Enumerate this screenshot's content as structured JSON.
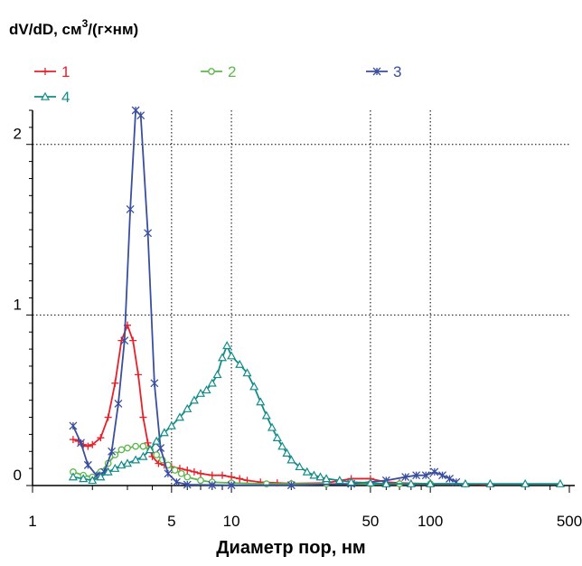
{
  "chart_data": {
    "type": "line",
    "ylabel_prefix": "dV/dD,  см",
    "ylabel_sup": "3",
    "ylabel_suffix": "/(г×нм)",
    "xlabel": "Диаметр пор, нм",
    "x_scale": "log",
    "xlim": [
      1,
      500
    ],
    "ylim": [
      0,
      2.2
    ],
    "x_ticks": [
      {
        "value": 1,
        "label": "1"
      },
      {
        "value": 5,
        "label": "5"
      },
      {
        "value": 10,
        "label": "10"
      },
      {
        "value": 50,
        "label": "50"
      },
      {
        "value": 100,
        "label": "100"
      },
      {
        "value": 500,
        "label": "500"
      }
    ],
    "y_ticks": [
      {
        "value": 0,
        "label": "0"
      },
      {
        "value": 1,
        "label": "1"
      },
      {
        "value": 2,
        "label": "2"
      }
    ],
    "gridlines_x": [
      5,
      10,
      50,
      100
    ],
    "gridlines_y": [
      1,
      2
    ],
    "legend_placement": "top-left",
    "series": [
      {
        "name": "1",
        "color": "#e8202a",
        "marker": "plus",
        "points": [
          [
            1.6,
            0.27
          ],
          [
            1.7,
            0.26
          ],
          [
            1.8,
            0.24
          ],
          [
            1.9,
            0.23
          ],
          [
            2.0,
            0.24
          ],
          [
            2.2,
            0.28
          ],
          [
            2.4,
            0.4
          ],
          [
            2.6,
            0.6
          ],
          [
            2.8,
            0.85
          ],
          [
            3.0,
            0.94
          ],
          [
            3.2,
            0.85
          ],
          [
            3.4,
            0.65
          ],
          [
            3.6,
            0.4
          ],
          [
            3.8,
            0.25
          ],
          [
            4.0,
            0.17
          ],
          [
            4.3,
            0.13
          ],
          [
            4.6,
            0.12
          ],
          [
            5.0,
            0.11
          ],
          [
            5.5,
            0.1
          ],
          [
            6.0,
            0.09
          ],
          [
            6.5,
            0.08
          ],
          [
            7.0,
            0.07
          ],
          [
            8.0,
            0.06
          ],
          [
            9.0,
            0.06
          ],
          [
            10.0,
            0.05
          ],
          [
            11.0,
            0.04
          ],
          [
            12.0,
            0.03
          ],
          [
            14.0,
            0.02
          ],
          [
            17.0,
            0.015
          ],
          [
            20.0,
            0.012
          ],
          [
            30.0,
            0.015
          ],
          [
            40.0,
            0.04
          ],
          [
            50.0,
            0.04
          ],
          [
            60.0,
            0.02
          ],
          [
            70.0,
            0.015
          ],
          [
            100.0,
            0.01
          ],
          [
            150.0,
            0.01
          ],
          [
            200.0,
            0.005
          ]
        ]
      },
      {
        "name": "2",
        "color": "#5cb84a",
        "marker": "circle",
        "points": [
          [
            1.6,
            0.08
          ],
          [
            1.8,
            0.06
          ],
          [
            2.0,
            0.05
          ],
          [
            2.2,
            0.08
          ],
          [
            2.4,
            0.13
          ],
          [
            2.6,
            0.18
          ],
          [
            2.8,
            0.21
          ],
          [
            3.0,
            0.22
          ],
          [
            3.3,
            0.23
          ],
          [
            3.6,
            0.23
          ],
          [
            3.9,
            0.21
          ],
          [
            4.2,
            0.18
          ],
          [
            4.5,
            0.15
          ],
          [
            4.8,
            0.12
          ],
          [
            5.2,
            0.09
          ],
          [
            5.6,
            0.07
          ],
          [
            6.0,
            0.05
          ],
          [
            7.0,
            0.03
          ],
          [
            8.0,
            0.02
          ],
          [
            10.0,
            0.015
          ],
          [
            15.0,
            0.01
          ],
          [
            20.0,
            0.01
          ],
          [
            30.0,
            0.01
          ],
          [
            50.0,
            0.01
          ],
          [
            70.0,
            0.01
          ],
          [
            100.0,
            0.01
          ]
        ]
      },
      {
        "name": "3",
        "color": "#3a4ea0",
        "marker": "star",
        "points": [
          [
            1.6,
            0.35
          ],
          [
            1.75,
            0.25
          ],
          [
            1.9,
            0.12
          ],
          [
            2.1,
            0.06
          ],
          [
            2.3,
            0.08
          ],
          [
            2.5,
            0.2
          ],
          [
            2.7,
            0.48
          ],
          [
            2.9,
            0.85
          ],
          [
            3.1,
            1.62
          ],
          [
            3.3,
            2.2
          ],
          [
            3.5,
            2.17
          ],
          [
            3.8,
            1.48
          ],
          [
            4.1,
            0.6
          ],
          [
            4.4,
            0.22
          ],
          [
            4.8,
            0.07
          ],
          [
            5.3,
            0.02
          ],
          [
            6.0,
            0.005
          ],
          [
            8.0,
            0.003
          ],
          [
            10.0,
            0.002
          ],
          [
            20.0,
            0.002
          ],
          [
            40.0,
            0.01
          ],
          [
            60.0,
            0.03
          ],
          [
            75.0,
            0.05
          ],
          [
            85.0,
            0.06
          ],
          [
            95.0,
            0.06
          ],
          [
            105.0,
            0.08
          ],
          [
            115.0,
            0.06
          ],
          [
            125.0,
            0.04
          ],
          [
            135.0,
            0.02
          ]
        ]
      },
      {
        "name": "4",
        "color": "#128c8a",
        "marker": "triangle",
        "points": [
          [
            1.6,
            0.05
          ],
          [
            1.8,
            0.04
          ],
          [
            2.0,
            0.03
          ],
          [
            2.2,
            0.05
          ],
          [
            2.4,
            0.08
          ],
          [
            2.6,
            0.1
          ],
          [
            2.8,
            0.12
          ],
          [
            3.0,
            0.13
          ],
          [
            3.3,
            0.15
          ],
          [
            3.6,
            0.17
          ],
          [
            3.9,
            0.21
          ],
          [
            4.2,
            0.26
          ],
          [
            4.6,
            0.31
          ],
          [
            5.0,
            0.35
          ],
          [
            5.5,
            0.4
          ],
          [
            6.0,
            0.45
          ],
          [
            6.5,
            0.5
          ],
          [
            7.0,
            0.54
          ],
          [
            7.5,
            0.56
          ],
          [
            8.0,
            0.6
          ],
          [
            8.5,
            0.65
          ],
          [
            9.0,
            0.75
          ],
          [
            9.5,
            0.82
          ],
          [
            10.0,
            0.76
          ],
          [
            11.0,
            0.71
          ],
          [
            12.0,
            0.66
          ],
          [
            13.0,
            0.58
          ],
          [
            14.0,
            0.49
          ],
          [
            15.0,
            0.41
          ],
          [
            16.0,
            0.34
          ],
          [
            17.0,
            0.28
          ],
          [
            18.0,
            0.23
          ],
          [
            19.0,
            0.19
          ],
          [
            20.0,
            0.15
          ],
          [
            22.0,
            0.11
          ],
          [
            24.0,
            0.08
          ],
          [
            26.0,
            0.06
          ],
          [
            28.0,
            0.05
          ],
          [
            30.0,
            0.04
          ],
          [
            35.0,
            0.03
          ],
          [
            40.0,
            0.02
          ],
          [
            50.0,
            0.015
          ],
          [
            60.0,
            0.01
          ],
          [
            80.0,
            0.01
          ],
          [
            100.0,
            0.01
          ],
          [
            150.0,
            0.01
          ],
          [
            200.0,
            0.01
          ],
          [
            300.0,
            0.01
          ],
          [
            450.0,
            0.01
          ]
        ]
      }
    ]
  }
}
